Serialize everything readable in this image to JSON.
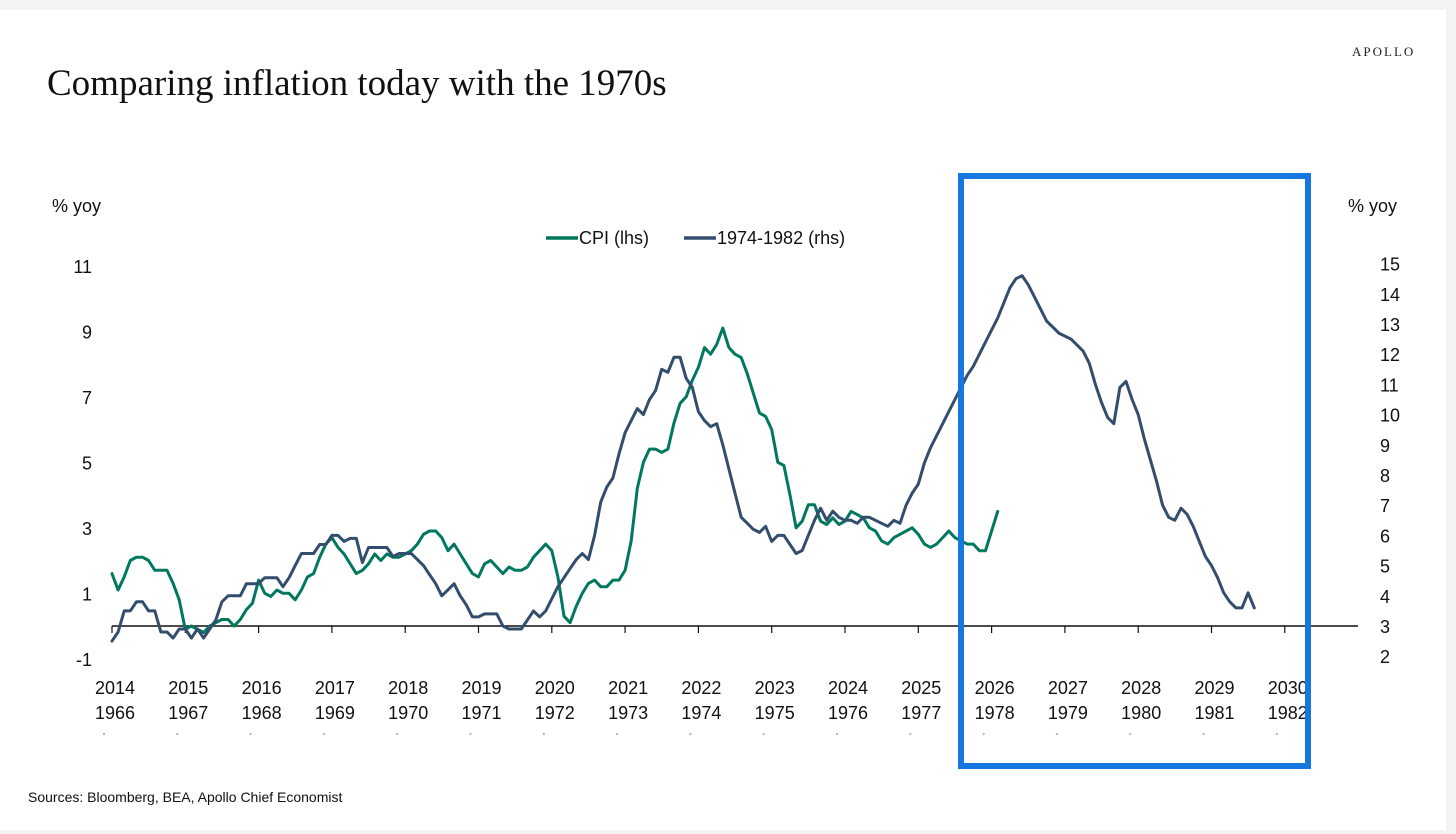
{
  "header": {
    "brand": "APOLLO",
    "title": "Comparing inflation today with the 1970s"
  },
  "footer": {
    "source": "Sources: Bloomberg, BEA, Apollo Chief Economist"
  },
  "chart_data": {
    "type": "line",
    "title": "Comparing inflation today with the 1970s",
    "ylabel_left": "% yoy",
    "ylabel_right": "% yoy",
    "yticks_left": [
      11,
      9,
      7,
      5,
      3,
      1,
      -1
    ],
    "yticks_right": [
      15,
      14,
      13,
      12,
      11,
      10,
      9,
      8,
      7,
      6,
      5,
      4,
      3,
      2
    ],
    "ylim_left": [
      -1,
      11
    ],
    "ylim_right": [
      2,
      15
    ],
    "x_labels_top": [
      "2014",
      "2015",
      "2016",
      "2017",
      "2018",
      "2019",
      "2020",
      "2021",
      "2022",
      "2023",
      "2024",
      "2025",
      "2026",
      "2027",
      "2028",
      "2029",
      "2030"
    ],
    "x_labels_bottom": [
      "1966",
      "1967",
      "1968",
      "1969",
      "1970",
      "1971",
      "1972",
      "1973",
      "1974",
      "1975",
      "1976",
      "1977",
      "1978",
      "1979",
      "1980",
      "1981",
      "1982"
    ],
    "legend": {
      "placement": "top-center"
    },
    "colors": {
      "cpi": "#00785f",
      "seventies": "#334d6d",
      "highlight": "#1677e0"
    },
    "highlight_range": [
      "2025.5",
      "2030.2"
    ],
    "series": [
      {
        "name": "CPI (lhs)",
        "axis": "left",
        "x_start": 2014,
        "step": 0.0833333,
        "values": [
          1.6,
          1.1,
          1.5,
          2.0,
          2.1,
          2.1,
          2.0,
          1.7,
          1.7,
          1.7,
          1.3,
          0.8,
          -0.1,
          0.0,
          -0.1,
          -0.2,
          0.0,
          0.1,
          0.2,
          0.2,
          0.0,
          0.2,
          0.5,
          0.7,
          1.4,
          1.0,
          0.9,
          1.1,
          1.0,
          1.0,
          0.8,
          1.1,
          1.5,
          1.6,
          2.1,
          2.5,
          2.7,
          2.4,
          2.2,
          1.9,
          1.6,
          1.7,
          1.9,
          2.2,
          2.0,
          2.2,
          2.1,
          2.1,
          2.2,
          2.3,
          2.5,
          2.8,
          2.9,
          2.9,
          2.7,
          2.3,
          2.5,
          2.2,
          1.9,
          1.6,
          1.5,
          1.9,
          2.0,
          1.8,
          1.6,
          1.8,
          1.7,
          1.7,
          1.8,
          2.1,
          2.3,
          2.5,
          2.3,
          1.5,
          0.3,
          0.1,
          0.6,
          1.0,
          1.3,
          1.4,
          1.2,
          1.2,
          1.4,
          1.4,
          1.7,
          2.6,
          4.2,
          5.0,
          5.4,
          5.4,
          5.3,
          5.4,
          6.2,
          6.8,
          7.0,
          7.5,
          7.9,
          8.5,
          8.3,
          8.6,
          9.1,
          8.5,
          8.3,
          8.2,
          7.7,
          7.1,
          6.5,
          6.4,
          6.0,
          5.0,
          4.9,
          4.0,
          3.0,
          3.2,
          3.7,
          3.7,
          3.2,
          3.1,
          3.3,
          3.1,
          3.2,
          3.5,
          3.4,
          3.3,
          3.0,
          2.9,
          2.6,
          2.5,
          2.7,
          2.8,
          2.9,
          3.0,
          2.8,
          2.5,
          2.4,
          2.5,
          2.7,
          2.9,
          2.7,
          2.6,
          2.5,
          2.5,
          2.3,
          2.3,
          2.9,
          3.5
        ]
      },
      {
        "name": "1974-1982 (rhs)",
        "axis": "right",
        "x_start": 2014,
        "step": 0.0833333,
        "values": [
          2.5,
          2.8,
          3.5,
          3.5,
          3.8,
          3.8,
          3.5,
          3.5,
          2.8,
          2.8,
          2.6,
          2.9,
          2.9,
          2.6,
          2.9,
          2.6,
          2.9,
          3.2,
          3.8,
          4.0,
          4.0,
          4.0,
          4.4,
          4.4,
          4.4,
          4.6,
          4.6,
          4.6,
          4.3,
          4.6,
          5.0,
          5.4,
          5.4,
          5.4,
          5.7,
          5.7,
          6.0,
          6.0,
          5.8,
          5.9,
          5.9,
          5.1,
          5.6,
          5.6,
          5.6,
          5.6,
          5.3,
          5.4,
          5.4,
          5.4,
          5.2,
          5.0,
          4.7,
          4.4,
          4.0,
          4.2,
          4.4,
          4.0,
          3.7,
          3.3,
          3.3,
          3.4,
          3.4,
          3.4,
          3.0,
          2.9,
          2.9,
          2.9,
          3.2,
          3.5,
          3.3,
          3.5,
          3.9,
          4.3,
          4.6,
          4.9,
          5.2,
          5.4,
          5.2,
          6.0,
          7.1,
          7.6,
          7.9,
          8.7,
          9.4,
          9.8,
          10.2,
          10.0,
          10.5,
          10.8,
          11.5,
          11.4,
          11.9,
          11.9,
          11.2,
          10.9,
          10.1,
          9.8,
          9.6,
          9.7,
          9.0,
          8.2,
          7.4,
          6.6,
          6.4,
          6.2,
          6.1,
          6.3,
          5.8,
          6.0,
          6.0,
          5.7,
          5.4,
          5.5,
          6.0,
          6.5,
          6.9,
          6.5,
          6.8,
          6.6,
          6.5,
          6.5,
          6.4,
          6.6,
          6.6,
          6.5,
          6.4,
          6.3,
          6.5,
          6.4,
          7.0,
          7.4,
          7.7,
          8.4,
          8.9,
          9.3,
          9.7,
          10.1,
          10.5,
          10.9,
          11.3,
          11.6,
          12.0,
          12.4,
          12.8,
          13.2,
          13.7,
          14.2,
          14.5,
          14.6,
          14.3,
          13.9,
          13.5,
          13.1,
          12.9,
          12.7,
          12.6,
          12.5,
          12.3,
          12.1,
          11.7,
          11.0,
          10.4,
          9.9,
          9.7,
          10.9,
          11.1,
          10.5,
          10.0,
          9.2,
          8.5,
          7.8,
          7.0,
          6.6,
          6.5,
          6.9,
          6.7,
          6.3,
          5.8,
          5.3,
          5.0,
          4.6,
          4.1,
          3.8,
          3.6,
          3.6,
          4.1,
          3.6
        ]
      }
    ]
  }
}
